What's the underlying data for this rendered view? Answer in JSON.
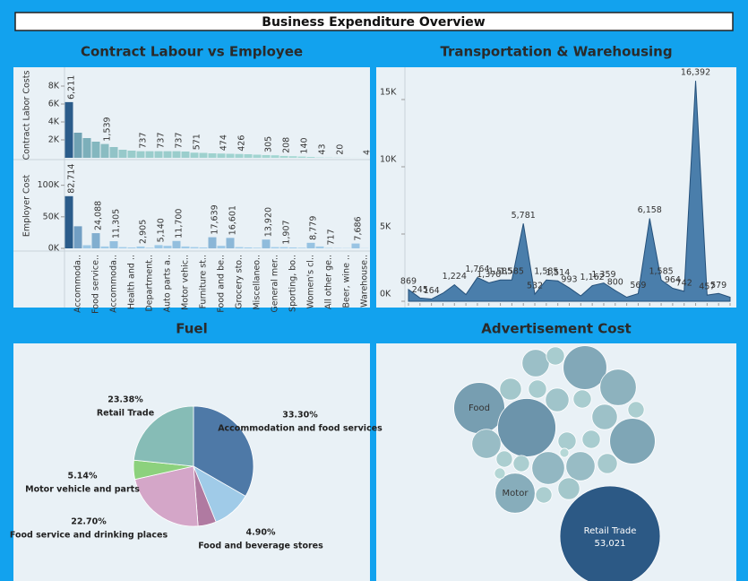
{
  "title": "Business Expenditure Overview",
  "chart_data": [
    {
      "type": "bar",
      "title": "Contract Labour vs Employee",
      "ylabel": "Contract Labor Costs",
      "categories": [
        null,
        "Accommoda..",
        null,
        "Food service..",
        null,
        "Accommoda..",
        null,
        "Health and ..",
        null,
        "Department..",
        null,
        "Auto parts a..",
        null,
        "Motor vehic..",
        null,
        "Furniture st..",
        null,
        "Food and be..",
        null,
        "Grocery sto..",
        null,
        "Miscellaneo..",
        null,
        "General mer..",
        null,
        "Sporting, bo..",
        null,
        "Women's cl..",
        null,
        "All other ge..",
        null,
        "Beer, wine ..",
        null,
        "Warehouse.."
      ],
      "values": [
        6211,
        2800,
        2200,
        1800,
        1539,
        1200,
        900,
        800,
        737,
        737,
        737,
        737,
        737,
        700,
        571,
        550,
        500,
        474,
        450,
        426,
        400,
        350,
        305,
        280,
        208,
        180,
        140,
        100,
        43,
        30,
        20,
        10,
        6,
        4
      ],
      "value_labels": [
        "6,211",
        null,
        null,
        null,
        "1,539",
        null,
        null,
        null,
        "737",
        null,
        "737",
        null,
        "737",
        null,
        "571",
        null,
        null,
        "474",
        null,
        "426",
        null,
        null,
        "305",
        null,
        "208",
        null,
        "140",
        null,
        "43",
        null,
        "20",
        null,
        null,
        "4"
      ],
      "ylim": [
        0,
        9500
      ],
      "yticks": [
        {
          "value": 2000,
          "label": "2K"
        },
        {
          "value": 4000,
          "label": "4K"
        },
        {
          "value": 6000,
          "label": "6K"
        },
        {
          "value": 8000,
          "label": "8K"
        }
      ],
      "color_scale": [
        "#a9dcd5",
        "#2b5c8a"
      ]
    },
    {
      "type": "bar",
      "ylabel": "Employer Cost",
      "values": [
        82714,
        35000,
        5000,
        24088,
        3000,
        11305,
        2000,
        1500,
        2905,
        1000,
        5140,
        4000,
        11700,
        3000,
        2000,
        1500,
        17639,
        4000,
        16601,
        2000,
        1500,
        1000,
        13920,
        2000,
        1907,
        1500,
        1000,
        8779,
        3000,
        717,
        500,
        400,
        7686,
        300
      ],
      "value_labels": [
        "82,714",
        null,
        null,
        "24,088",
        null,
        "11,305",
        null,
        null,
        "2,905",
        null,
        "5,140",
        null,
        "11,700",
        null,
        null,
        null,
        "17,639",
        null,
        "16,601",
        null,
        null,
        null,
        "13,920",
        null,
        "1,907",
        null,
        null,
        "8,779",
        null,
        "717",
        null,
        null,
        "7,686",
        null
      ],
      "ylim": [
        0,
        135000
      ],
      "yticks": [
        {
          "value": 0,
          "label": "0K"
        },
        {
          "value": 50000,
          "label": "50K"
        },
        {
          "value": 100000,
          "label": "100K"
        }
      ],
      "color_scale": [
        "#a4cfec",
        "#2b5c8a"
      ]
    },
    {
      "type": "area",
      "title": "Transportation & Warehousing",
      "values": [
        869,
        245,
        164,
        600,
        1224,
        500,
        1764,
        1370,
        1585,
        1585,
        5781,
        532,
        1585,
        1514,
        993,
        400,
        1162,
        1359,
        800,
        300,
        569,
        6158,
        1585,
        964,
        742,
        16392,
        457,
        579,
        300
      ],
      "value_labels": [
        "869",
        "245",
        "164",
        null,
        "1,224",
        null,
        "1,764",
        "1,370",
        "1,585",
        "1,585",
        "5,781",
        "532",
        "1,585",
        "1,514",
        "993",
        null,
        "1,162",
        "1,359",
        "800",
        null,
        "569",
        "6,158",
        "1,585",
        "964",
        "742",
        "16,392",
        "457",
        "579",
        null
      ],
      "ylim": [
        0,
        17000
      ],
      "yticks": [
        {
          "value": 0,
          "label": "0K"
        },
        {
          "value": 5000,
          "label": "5K"
        },
        {
          "value": 10000,
          "label": "10K"
        },
        {
          "value": 15000,
          "label": "15K"
        }
      ],
      "color": "#4a7eab",
      "line_color": "#24507a"
    },
    {
      "type": "pie",
      "title": "Fuel",
      "categories": [
        "Accommodation and food services",
        null,
        "Food and beverage stores",
        "Food service and drinking places",
        "Motor vehicle and parts",
        "Retail Trade"
      ],
      "values": [
        33.3,
        10.58,
        4.9,
        22.7,
        5.14,
        23.38
      ],
      "value_labels": [
        "33.30%",
        null,
        "4.90%",
        "22.70%",
        "5.14%",
        "23.38%"
      ],
      "colors": [
        "#4e79a7",
        "#a0cbe8",
        "#b07aa1",
        "#d4a6c8",
        "#8cd17d",
        "#86bcb6"
      ]
    },
    {
      "type": "bubble",
      "title": "Advertisement Cost",
      "categories": [
        "Food",
        null,
        "Retail Trade",
        "Motor",
        null,
        null,
        null,
        null,
        null,
        null,
        null,
        null,
        null,
        null,
        null,
        null,
        null,
        null,
        null,
        null,
        null,
        null,
        null,
        null,
        null,
        null,
        null
      ],
      "values": [
        13656,
        17837,
        53021,
        8431,
        10034,
        6968,
        10887,
        3919,
        1742,
        2508,
        1742,
        2944,
        1742,
        3414,
        1411,
        4459,
        1411,
        1411,
        5644,
        4459,
        1742,
        1742,
        2108,
        2508,
        1411,
        627,
        435
      ],
      "value_labels": [
        null,
        null,
        "53,021",
        null,
        null,
        null,
        null,
        null,
        null,
        null,
        null,
        null,
        null,
        null,
        null,
        null,
        null,
        null,
        null,
        null,
        null,
        null,
        null,
        null,
        null,
        null,
        null
      ],
      "color_scale": [
        "#c4e5df",
        "#2c5985"
      ]
    }
  ]
}
